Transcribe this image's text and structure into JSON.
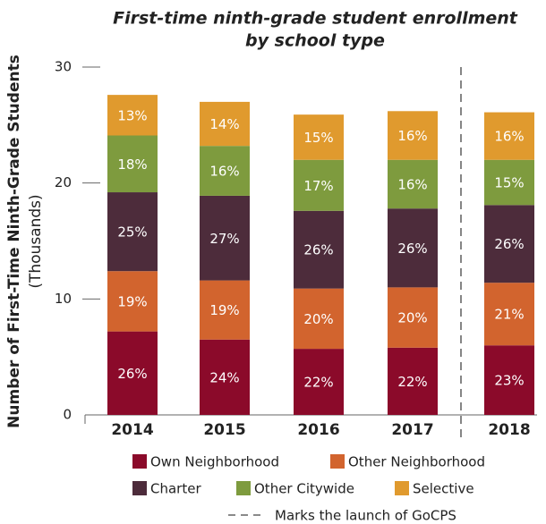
{
  "chart_data": {
    "type": "bar",
    "stacked": true,
    "title": [
      "First-time ninth-grade student enrollment",
      "by school type"
    ],
    "ylabel": [
      "Number of First-Time Ninth-Grade Students",
      "(Thousands)"
    ],
    "categories": [
      "2014",
      "2015",
      "2016",
      "2017",
      "2018"
    ],
    "ylim": [
      0,
      30
    ],
    "yticks": [
      0,
      10,
      20,
      30
    ],
    "series": [
      {
        "name": "Own Neighborhood",
        "color": "#8b0a2a",
        "values": [
          7.2,
          6.5,
          5.7,
          5.8,
          6.0
        ],
        "value_labels": [
          "26%",
          "24%",
          "22%",
          "22%",
          "23%"
        ]
      },
      {
        "name": "Other Neighborhood",
        "color": "#d2642e",
        "values": [
          5.2,
          5.1,
          5.2,
          5.2,
          5.4
        ],
        "value_labels": [
          "19%",
          "19%",
          "20%",
          "20%",
          "21%"
        ]
      },
      {
        "name": "Charter",
        "color": "#4d2c3b",
        "values": [
          6.8,
          7.3,
          6.7,
          6.8,
          6.7
        ],
        "value_labels": [
          "25%",
          "27%",
          "26%",
          "26%",
          "26%"
        ]
      },
      {
        "name": "Other Citywide",
        "color": "#7e9b3e",
        "values": [
          4.9,
          4.3,
          4.4,
          4.2,
          3.9
        ],
        "value_labels": [
          "18%",
          "16%",
          "17%",
          "16%",
          "15%"
        ]
      },
      {
        "name": "Selective",
        "color": "#e09a2e",
        "values": [
          3.5,
          3.8,
          3.9,
          4.2,
          4.1
        ],
        "value_labels": [
          "13%",
          "14%",
          "15%",
          "16%",
          "16%"
        ]
      }
    ],
    "annotation": "Marks the launch of GoCPS"
  }
}
